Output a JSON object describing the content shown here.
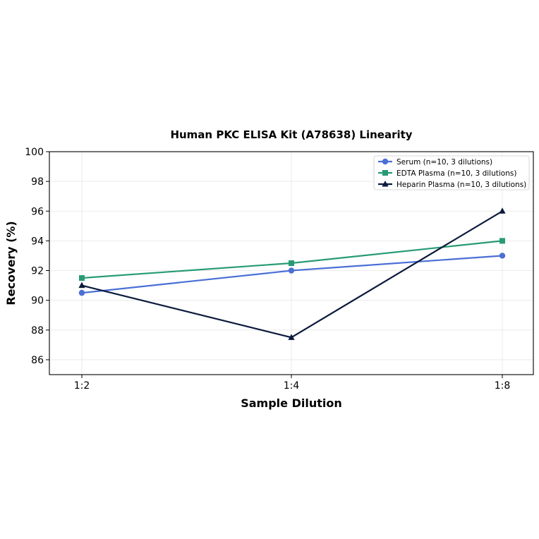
{
  "chart_data": {
    "type": "line",
    "title": "Human PKC ELISA Kit (A78638) Linearity",
    "xlabel": "Sample Dilution",
    "ylabel": "Recovery (%)",
    "categories": [
      "1:2",
      "1:4",
      "1:8"
    ],
    "ylim": [
      85,
      100
    ],
    "yticks": [
      86,
      88,
      90,
      92,
      94,
      96,
      98,
      100
    ],
    "grid": true,
    "legend_position": "top-right",
    "series": [
      {
        "name": "Serum (n=10, 3 dilutions)",
        "values": [
          90.5,
          92.0,
          93.0
        ],
        "color": "#4a6fd6",
        "marker": "circle"
      },
      {
        "name": "EDTA Plasma (n=10, 3 dilutions)",
        "values": [
          91.5,
          92.5,
          94.0
        ],
        "color": "#279b76",
        "marker": "square"
      },
      {
        "name": "Heparin Plasma (n=10, 3 dilutions)",
        "values": [
          91.0,
          87.5,
          96.0
        ],
        "color": "#0c1a3d",
        "marker": "triangle"
      }
    ]
  }
}
